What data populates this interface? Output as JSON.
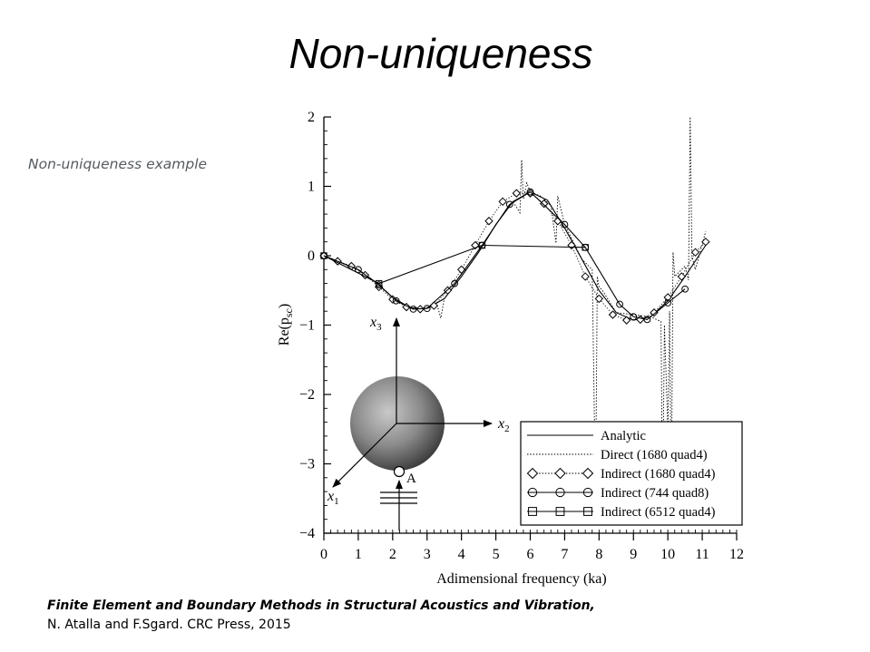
{
  "slide": {
    "title": "Non-uniqueness",
    "caption": "Non-uniqueness example",
    "reference_title": "Finite Element and Boundary Methods in Structural Acoustics and Vibration,",
    "reference_authors": "N. Atalla and F.Sgard. CRC Press, 2015"
  },
  "inset": {
    "axis_x3": "x",
    "axis_x3_sub": "3",
    "axis_x2": "x",
    "axis_x2_sub": "2",
    "axis_x1": "x",
    "axis_x1_sub": "1",
    "point_label": "A"
  },
  "chart_data": {
    "type": "line",
    "title": "",
    "xlabel": "Adimensional frequency (ka)",
    "ylabel": "Re(p",
    "ylabel_sub": "sc",
    "ylabel_close": ")",
    "xlim": [
      0,
      12
    ],
    "ylim": [
      -4,
      2
    ],
    "x_ticks": [
      0,
      1,
      2,
      3,
      4,
      5,
      6,
      7,
      8,
      9,
      10,
      11,
      12
    ],
    "y_ticks": [
      2,
      1,
      0,
      -1,
      -2,
      -3,
      -4
    ],
    "grid": false,
    "legend_position": "bottom-right",
    "series": [
      {
        "name": "Analytic",
        "style": "solid",
        "marker": "none",
        "x": [
          0,
          0.5,
          1,
          1.5,
          2,
          2.5,
          3,
          3.5,
          4,
          4.5,
          5,
          5.5,
          6,
          6.5,
          7,
          7.5,
          8,
          8.5,
          9,
          9.5,
          10,
          10.5,
          11.1
        ],
        "y": [
          0,
          -0.1,
          -0.2,
          -0.38,
          -0.6,
          -0.75,
          -0.76,
          -0.62,
          -0.3,
          0.05,
          0.45,
          0.78,
          0.92,
          0.8,
          0.4,
          -0.05,
          -0.5,
          -0.82,
          -0.93,
          -0.88,
          -0.65,
          -0.3,
          0.15
        ]
      },
      {
        "name": "Direct (1680 quad4)",
        "style": "dotted",
        "marker": "none",
        "x": [
          0,
          0.5,
          1,
          1.5,
          2,
          2.5,
          3,
          3.3,
          3.4,
          3.5,
          4,
          4.5,
          5,
          5.5,
          5.7,
          5.75,
          5.8,
          5.9,
          6,
          6.3,
          6.6,
          6.75,
          6.8,
          7,
          7.5,
          7.8,
          7.9,
          7.95,
          8.0,
          8.1,
          8.5,
          9,
          9.5,
          9.8,
          9.85,
          9.9,
          10.0,
          10.05,
          10.1,
          10.15,
          10.2,
          10.5,
          10.6,
          10.65,
          10.7,
          10.8,
          11.1
        ],
        "y": [
          0,
          -0.1,
          -0.2,
          -0.38,
          -0.6,
          -0.75,
          -0.76,
          -0.72,
          -0.9,
          -0.62,
          -0.3,
          0.05,
          0.45,
          0.78,
          0.62,
          1.38,
          0.82,
          1.05,
          0.92,
          0.86,
          0.72,
          0.18,
          0.86,
          0.45,
          -0.05,
          -0.2,
          -3.5,
          -0.3,
          -0.45,
          -0.5,
          -0.82,
          -0.85,
          -0.88,
          -0.95,
          -3.6,
          -1.0,
          -2.5,
          -0.8,
          -3.6,
          0.05,
          -0.3,
          -0.15,
          -0.35,
          2.0,
          0.0,
          -0.2,
          0.35
        ]
      },
      {
        "name": "Indirect (1680 quad4)",
        "style": "dotted",
        "marker": "diamond",
        "x": [
          0,
          0.4,
          0.8,
          1.2,
          1.6,
          2.0,
          2.4,
          2.8,
          3.2,
          3.6,
          4.0,
          4.4,
          4.8,
          5.2,
          5.6,
          6.0,
          6.4,
          6.8,
          7.2,
          7.6,
          8.0,
          8.4,
          8.8,
          9.2,
          9.6,
          10.0,
          10.4,
          10.8,
          11.1
        ],
        "y": [
          0,
          -0.08,
          -0.15,
          -0.28,
          -0.45,
          -0.63,
          -0.74,
          -0.77,
          -0.72,
          -0.5,
          -0.2,
          0.15,
          0.5,
          0.78,
          0.9,
          0.9,
          0.75,
          0.5,
          0.15,
          -0.3,
          -0.62,
          -0.85,
          -0.93,
          -0.92,
          -0.82,
          -0.6,
          -0.3,
          0.05,
          0.2
        ]
      },
      {
        "name": "Indirect (744 quad8)",
        "style": "solid",
        "marker": "circle",
        "x": [
          0,
          1.0,
          1.6,
          2.1,
          2.6,
          3.0,
          3.8,
          4.6,
          5.4,
          6.0,
          7.0,
          7.6,
          8.6,
          9.0,
          9.4,
          10.0,
          10.5
        ],
        "y": [
          0,
          -0.2,
          -0.42,
          -0.65,
          -0.77,
          -0.76,
          -0.4,
          0.15,
          0.74,
          0.92,
          0.45,
          0.12,
          -0.7,
          -0.88,
          -0.92,
          -0.68,
          -0.48
        ]
      },
      {
        "name": "Indirect (6512 quad4)",
        "style": "solid",
        "marker": "square",
        "x": [
          0,
          1.6,
          4.6,
          7.6
        ],
        "y": [
          0,
          -0.4,
          0.15,
          0.12
        ]
      }
    ]
  }
}
